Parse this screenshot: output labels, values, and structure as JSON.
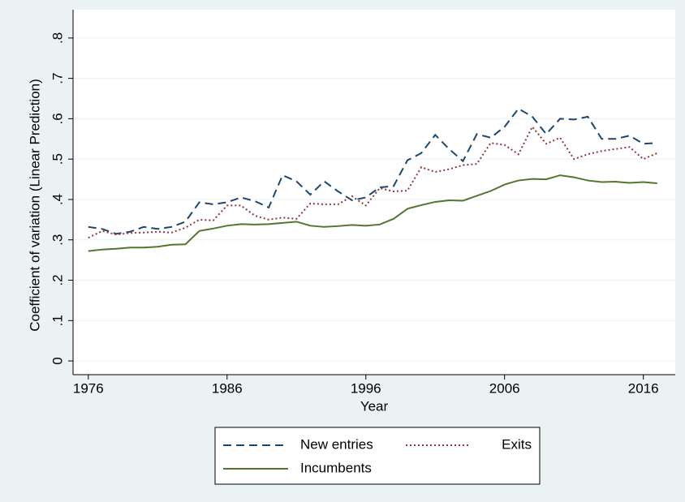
{
  "chart_data": {
    "type": "line",
    "xlabel": "Year",
    "ylabel": "Coefficient of variation (Linear Prediction)",
    "x": [
      1976,
      1977,
      1978,
      1979,
      1980,
      1981,
      1982,
      1983,
      1984,
      1985,
      1986,
      1987,
      1988,
      1989,
      1990,
      1991,
      1992,
      1993,
      1994,
      1995,
      1996,
      1997,
      1998,
      1999,
      2000,
      2001,
      2002,
      2003,
      2004,
      2005,
      2006,
      2007,
      2008,
      2009,
      2010,
      2011,
      2012,
      2013,
      2014,
      2015,
      2016,
      2017
    ],
    "series": [
      {
        "name": "New entries",
        "color": "#1a476f",
        "dash": "dashed",
        "values": [
          0.332,
          0.327,
          0.315,
          0.32,
          0.332,
          0.327,
          0.332,
          0.345,
          0.393,
          0.388,
          0.393,
          0.405,
          0.396,
          0.38,
          0.46,
          0.445,
          0.412,
          0.445,
          0.42,
          0.398,
          0.405,
          0.43,
          0.433,
          0.497,
          0.515,
          0.56,
          0.525,
          0.495,
          0.562,
          0.553,
          0.58,
          0.625,
          0.605,
          0.562,
          0.6,
          0.598,
          0.605,
          0.55,
          0.55,
          0.558,
          0.538,
          0.54
        ]
      },
      {
        "name": "Exits",
        "color": "#90353b",
        "dash": "dotted",
        "values": [
          0.305,
          0.322,
          0.313,
          0.317,
          0.318,
          0.32,
          0.318,
          0.33,
          0.35,
          0.348,
          0.385,
          0.385,
          0.36,
          0.35,
          0.355,
          0.352,
          0.39,
          0.388,
          0.388,
          0.408,
          0.385,
          0.428,
          0.42,
          0.422,
          0.48,
          0.468,
          0.475,
          0.485,
          0.488,
          0.54,
          0.535,
          0.512,
          0.58,
          0.538,
          0.553,
          0.5,
          0.512,
          0.52,
          0.525,
          0.53,
          0.5,
          0.515
        ]
      },
      {
        "name": "Incumbents",
        "color": "#55752f",
        "dash": "solid",
        "values": [
          0.272,
          0.276,
          0.278,
          0.281,
          0.281,
          0.283,
          0.288,
          0.289,
          0.322,
          0.328,
          0.335,
          0.339,
          0.338,
          0.339,
          0.342,
          0.345,
          0.335,
          0.332,
          0.334,
          0.337,
          0.335,
          0.338,
          0.352,
          0.377,
          0.386,
          0.394,
          0.398,
          0.397,
          0.409,
          0.421,
          0.437,
          0.447,
          0.451,
          0.45,
          0.46,
          0.455,
          0.447,
          0.443,
          0.444,
          0.441,
          0.443,
          0.44
        ]
      }
    ],
    "xlim": [
      1974.9,
      2018.3
    ],
    "xticks": [
      1976,
      1986,
      1996,
      2006,
      2016
    ],
    "ylim": [
      -0.034,
      0.87
    ],
    "yticks": [
      0,
      {
        "value": 0.1,
        "label": ".1"
      },
      {
        "value": 0.2,
        "label": ".2"
      },
      {
        "value": 0.3,
        "label": ".3"
      },
      {
        "value": 0.4,
        "label": ".4"
      },
      {
        "value": 0.5,
        "label": ".5"
      },
      {
        "value": 0.6,
        "label": ".6"
      },
      {
        "value": 0.7,
        "label": ".7"
      },
      {
        "value": 0.8,
        "label": ".8"
      }
    ],
    "grid": true,
    "legend": "bottom"
  }
}
